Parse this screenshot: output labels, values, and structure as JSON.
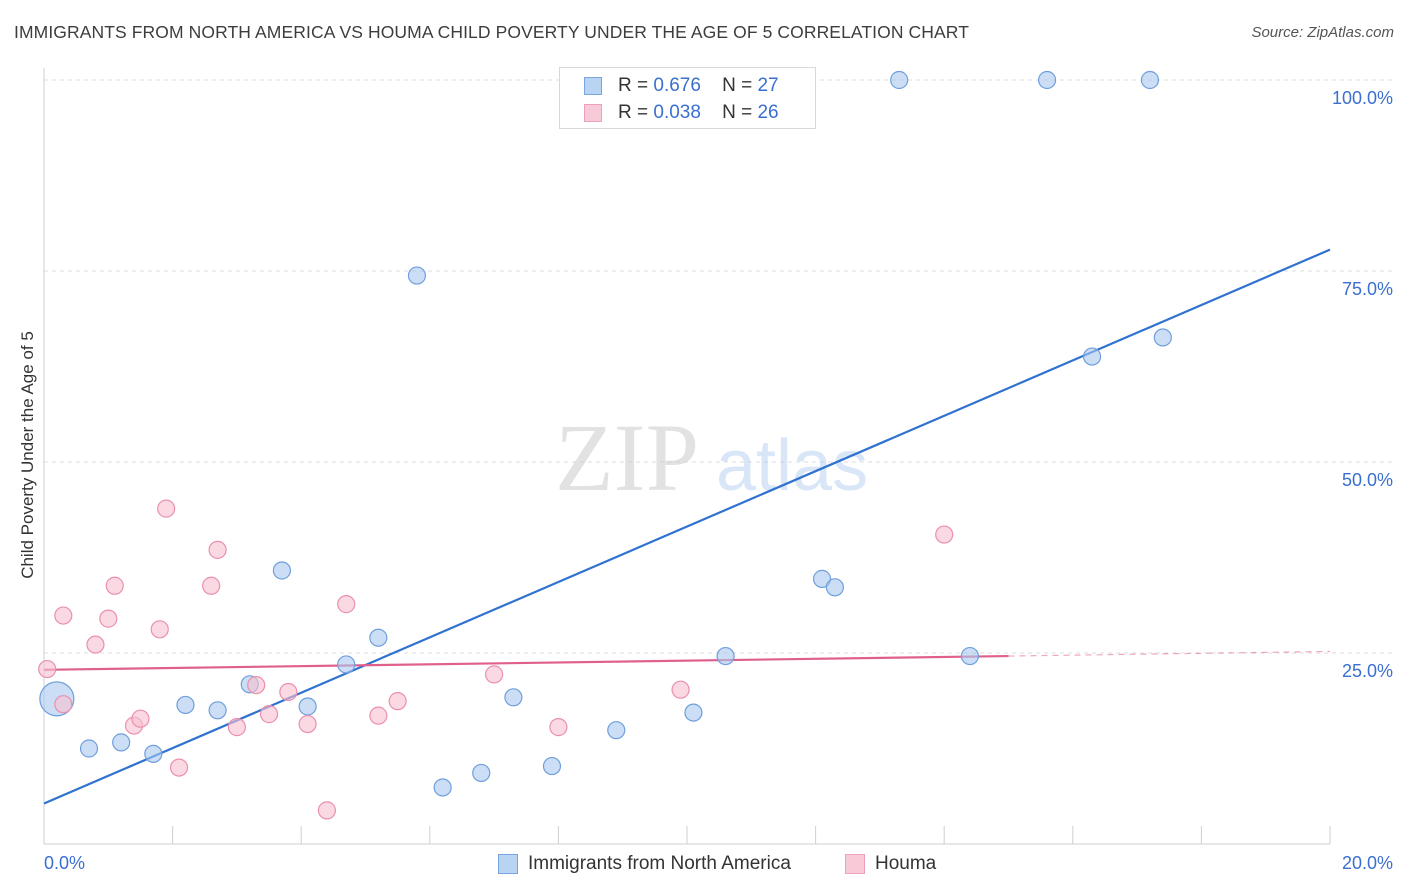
{
  "title": "IMMIGRANTS FROM NORTH AMERICA VS HOUMA CHILD POVERTY UNDER THE AGE OF 5 CORRELATION CHART",
  "source": "Source: ZipAtlas.com",
  "watermark": {
    "zip": "ZIP",
    "atlas": "atlas"
  },
  "legend_top": {
    "r_label": "R =",
    "n_label": "N =",
    "rows": [
      {
        "r": "0.676",
        "n": "27"
      },
      {
        "r": "0.038",
        "n": "26"
      }
    ]
  },
  "chart_data": {
    "type": "scatter",
    "title": "IMMIGRANTS FROM NORTH AMERICA VS HOUMA CHILD POVERTY UNDER THE AGE OF 5 CORRELATION CHART",
    "xlabel": "",
    "ylabel": "Child Poverty Under the Age of 5",
    "xlim": [
      0,
      20
    ],
    "ylim": [
      0,
      102
    ],
    "x_tick_labels": [
      {
        "value": 0,
        "label": "0.0%"
      },
      {
        "value": 20,
        "label": "20.0%"
      }
    ],
    "y_tick_labels": [
      {
        "value": 25,
        "label": "25.0%"
      },
      {
        "value": 50,
        "label": "50.0%"
      },
      {
        "value": 75,
        "label": "75.0%"
      },
      {
        "value": 100,
        "label": "100.0%"
      }
    ],
    "grid": true,
    "legend_position": "bottom-center",
    "series": [
      {
        "name": "Immigrants from North America",
        "color": "#a9c8f0",
        "stroke": "#6f9fdc",
        "line_color": "#2f72d0",
        "trend": {
          "x": [
            0,
            20
          ],
          "y": [
            5.3,
            77.8
          ]
        },
        "points": [
          {
            "x": 0.2,
            "y": 19.0,
            "big": true
          },
          {
            "x": 0.7,
            "y": 12.5
          },
          {
            "x": 1.2,
            "y": 13.3
          },
          {
            "x": 1.7,
            "y": 11.8
          },
          {
            "x": 2.2,
            "y": 18.2
          },
          {
            "x": 2.7,
            "y": 17.5
          },
          {
            "x": 3.2,
            "y": 20.9
          },
          {
            "x": 3.7,
            "y": 35.8
          },
          {
            "x": 4.1,
            "y": 18.0
          },
          {
            "x": 4.7,
            "y": 23.5
          },
          {
            "x": 5.2,
            "y": 27.0
          },
          {
            "x": 5.8,
            "y": 74.4
          },
          {
            "x": 6.2,
            "y": 7.4
          },
          {
            "x": 6.8,
            "y": 9.3
          },
          {
            "x": 7.3,
            "y": 19.2
          },
          {
            "x": 7.9,
            "y": 10.2
          },
          {
            "x": 8.9,
            "y": 14.9
          },
          {
            "x": 10.1,
            "y": 17.2
          },
          {
            "x": 10.6,
            "y": 24.6
          },
          {
            "x": 12.1,
            "y": 34.7
          },
          {
            "x": 12.3,
            "y": 33.6
          },
          {
            "x": 13.3,
            "y": 100.0
          },
          {
            "x": 14.4,
            "y": 24.6
          },
          {
            "x": 15.6,
            "y": 100.0
          },
          {
            "x": 16.3,
            "y": 63.8
          },
          {
            "x": 17.2,
            "y": 100.0
          },
          {
            "x": 17.4,
            "y": 66.3
          }
        ]
      },
      {
        "name": "Houma",
        "color": "#f6bfd0",
        "stroke": "#ea90ae",
        "line_color": "#e0608d",
        "trend": {
          "x": [
            0,
            15
          ],
          "y": [
            22.8,
            24.6
          ]
        },
        "trend_dashed": {
          "x": [
            15,
            20
          ],
          "y": [
            24.6,
            25.2
          ]
        },
        "points": [
          {
            "x": 0.05,
            "y": 22.9
          },
          {
            "x": 0.3,
            "y": 18.3
          },
          {
            "x": 0.3,
            "y": 29.9
          },
          {
            "x": 0.8,
            "y": 26.1
          },
          {
            "x": 1.0,
            "y": 29.5
          },
          {
            "x": 1.1,
            "y": 33.8
          },
          {
            "x": 1.4,
            "y": 15.5
          },
          {
            "x": 1.5,
            "y": 16.4
          },
          {
            "x": 1.8,
            "y": 28.1
          },
          {
            "x": 1.9,
            "y": 43.9
          },
          {
            "x": 2.1,
            "y": 10.0
          },
          {
            "x": 2.6,
            "y": 33.8
          },
          {
            "x": 2.7,
            "y": 38.5
          },
          {
            "x": 3.0,
            "y": 15.3
          },
          {
            "x": 3.3,
            "y": 20.8
          },
          {
            "x": 3.5,
            "y": 17.0
          },
          {
            "x": 3.8,
            "y": 19.9
          },
          {
            "x": 4.1,
            "y": 15.7
          },
          {
            "x": 4.4,
            "y": 4.4
          },
          {
            "x": 4.7,
            "y": 31.4
          },
          {
            "x": 5.2,
            "y": 16.8
          },
          {
            "x": 5.5,
            "y": 18.7
          },
          {
            "x": 7.0,
            "y": 22.2
          },
          {
            "x": 8.0,
            "y": 15.3
          },
          {
            "x": 9.9,
            "y": 20.2
          },
          {
            "x": 14.0,
            "y": 40.5
          }
        ]
      }
    ]
  }
}
